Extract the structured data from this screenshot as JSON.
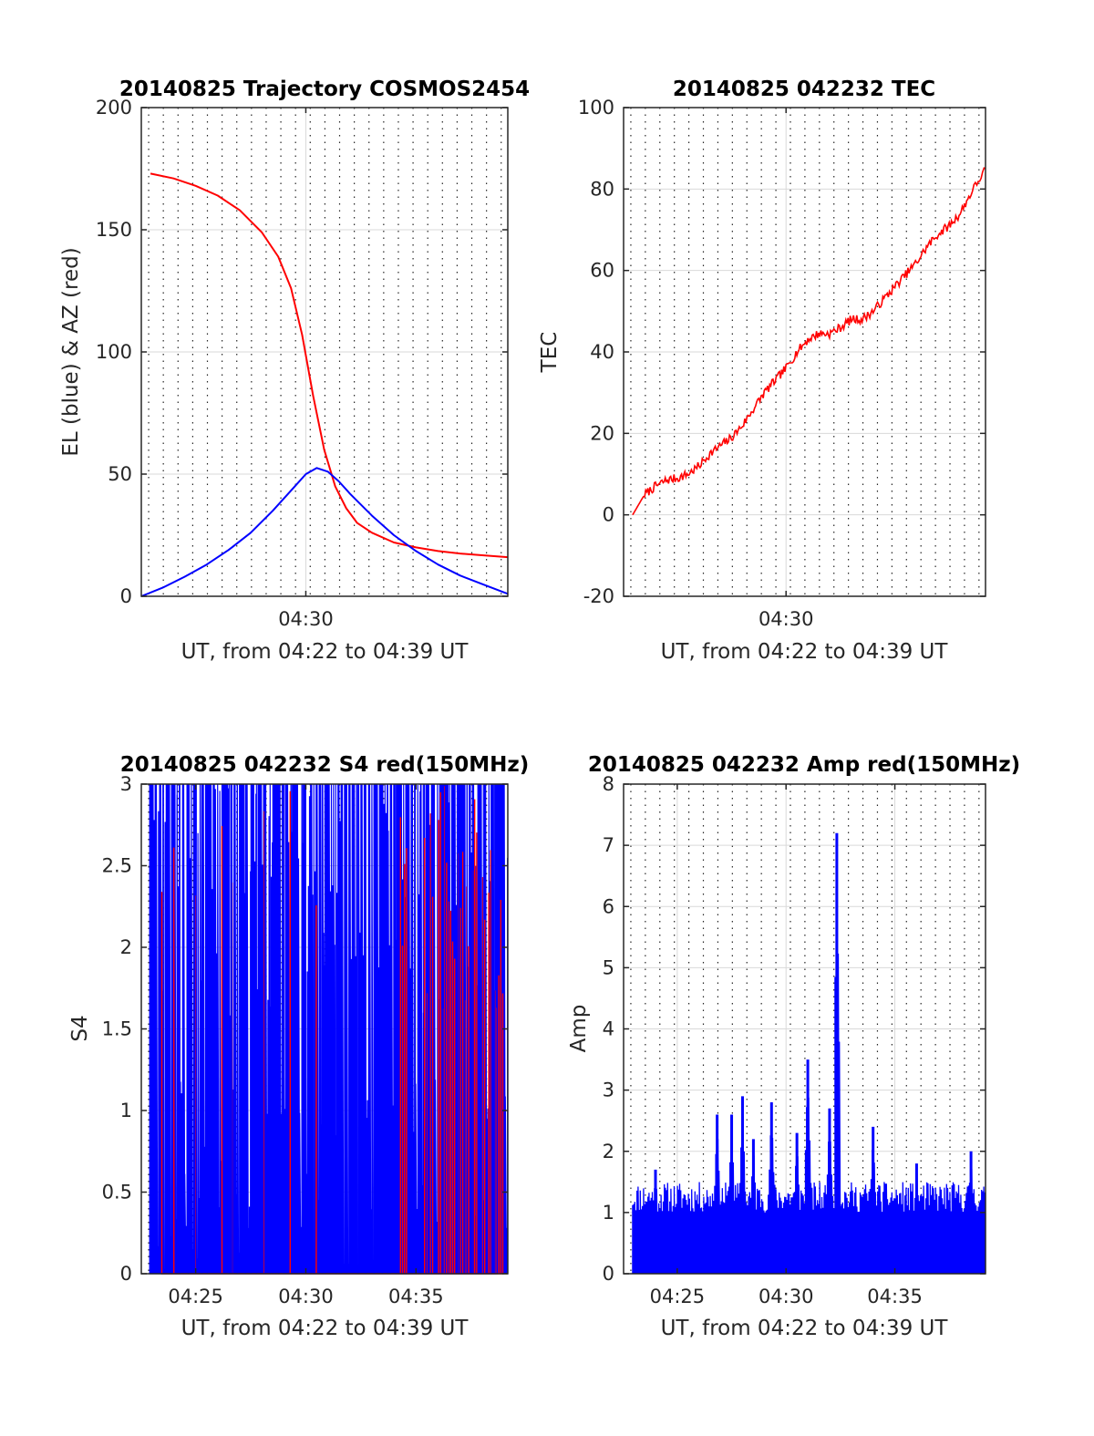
{
  "figure": {
    "background": "#ffffff"
  },
  "chart_data": [
    {
      "id": "trajectory",
      "type": "line",
      "title": "20140825 Trajectory COSMOS2454",
      "xlabel": "UT, from 04:22 to 04:39 UT",
      "ylabel": "EL (blue) & AZ (red)",
      "xlim": [
        "04:22:32",
        "04:39:10"
      ],
      "ylim": [
        0,
        200
      ],
      "yticks": [
        "0",
        "50",
        "100",
        "150",
        "200"
      ],
      "xticks": [
        {
          "t": "04:30",
          "label": "04:30"
        }
      ],
      "grid": "on (dotted vertical lines every ~40 s)",
      "series": [
        {
          "color": "#ff0000",
          "x": [
            "04:22:57",
            "04:24:00",
            "04:25:00",
            "04:26:00",
            "04:27:00",
            "04:28:00",
            "04:28:45",
            "04:29:20",
            "04:29:50",
            "04:30:20",
            "04:30:50",
            "04:31:20",
            "04:31:50",
            "04:32:20",
            "04:33:00",
            "04:34:00",
            "04:35:00",
            "04:36:00",
            "04:37:00",
            "04:38:00",
            "04:39:10"
          ],
          "values": [
            173,
            171,
            168,
            164,
            158,
            149,
            139,
            126,
            107,
            82,
            60,
            45,
            36,
            30,
            26,
            22,
            20,
            18.5,
            17.5,
            16.8,
            16
          ]
        },
        {
          "color": "#0000ff",
          "x": [
            "04:22:32",
            "04:23:30",
            "04:24:30",
            "04:25:30",
            "04:26:30",
            "04:27:30",
            "04:28:30",
            "04:29:30",
            "04:30:00",
            "04:30:30",
            "04:31:00",
            "04:31:30",
            "04:32:00",
            "04:33:00",
            "04:34:00",
            "04:35:00",
            "04:36:00",
            "04:37:00",
            "04:38:00",
            "04:39:10"
          ],
          "values": [
            0,
            3.5,
            8,
            13,
            19,
            26,
            35,
            45,
            50,
            52.5,
            51,
            47,
            42,
            33,
            25,
            18.5,
            13,
            8.5,
            5,
            1
          ]
        }
      ]
    },
    {
      "id": "tec",
      "type": "line",
      "title": "20140825 042232 TEC",
      "xlabel": "UT, from 04:22 to 04:39 UT",
      "ylabel": "TEC",
      "xlim": [
        "04:22:32",
        "04:39:10"
      ],
      "ylim": [
        -20,
        100
      ],
      "yticks": [
        "-20",
        "0",
        "20",
        "40",
        "60",
        "80",
        "100"
      ],
      "xticks": [
        {
          "t": "04:30",
          "label": "04:30"
        }
      ],
      "grid": "on",
      "series": [
        {
          "color": "#ff0000",
          "x": [
            "04:22:57",
            "04:23:30",
            "04:24:00",
            "04:24:30",
            "04:25:00",
            "04:25:30",
            "04:26:00",
            "04:26:30",
            "04:27:00",
            "04:27:30",
            "04:28:00",
            "04:28:30",
            "04:29:00",
            "04:29:30",
            "04:30:00",
            "04:30:30",
            "04:31:00",
            "04:31:30",
            "04:32:00",
            "04:32:30",
            "04:33:00",
            "04:33:30",
            "04:34:00",
            "04:34:30",
            "04:35:00",
            "04:35:30",
            "04:36:00",
            "04:36:30",
            "04:37:00",
            "04:37:30",
            "04:38:00",
            "04:38:30",
            "04:39:10"
          ],
          "values": [
            0,
            5,
            7,
            8.5,
            9,
            10,
            12,
            15,
            17,
            19,
            22,
            26,
            30,
            33,
            36,
            40,
            43,
            44.5,
            44.5,
            46,
            48,
            48,
            50,
            53,
            56,
            59,
            62,
            66,
            69,
            71,
            74,
            79,
            85
          ]
        }
      ]
    },
    {
      "id": "s4",
      "type": "line",
      "title": "20140825 042232 S4 red(150MHz)",
      "xlabel": "UT, from 04:22 to 04:39 UT",
      "ylabel": "S4",
      "xlim": [
        "04:22:32",
        "04:39:10"
      ],
      "ylim": [
        0,
        3
      ],
      "yticks": [
        "0",
        "0.5",
        "1",
        "1.5",
        "2",
        "2.5",
        "3"
      ],
      "xticks": [
        {
          "t": "04:25",
          "label": "04:25"
        },
        {
          "t": "04:30",
          "label": "04:30"
        },
        {
          "t": "04:35",
          "label": "04:35"
        }
      ],
      "grid": "on",
      "series": [
        {
          "color": "#ff0000",
          "description_of_values": "dense spikes, most saturating at 3, especially dense red bursts 04:36–04:39",
          "x": [
            "04:23:10",
            "04:26:40",
            "04:27:00",
            "04:28:50",
            "04:29:20",
            "04:31:30",
            "04:33:10",
            "04:34:40",
            "04:35:30",
            "04:36:10",
            "04:36:40",
            "04:37:10",
            "04:37:40",
            "04:38:10",
            "04:38:40"
          ],
          "values": [
            2.45,
            2.6,
            3.0,
            3.0,
            2.1,
            1.3,
            2.5,
            2.2,
            2.3,
            2.0,
            2.5,
            2.4,
            2.8,
            2.7,
            2.3
          ]
        },
        {
          "color": "#0000ff",
          "description_of_values": "dense spikes, mostly saturating at 3 with dropouts to 0",
          "x": [
            "04:23:00",
            "04:24:00",
            "04:25:00",
            "04:26:00",
            "04:27:00",
            "04:28:00",
            "04:29:00",
            "04:30:00",
            "04:31:00",
            "04:32:00",
            "04:33:00",
            "04:34:00",
            "04:35:00",
            "04:36:00",
            "04:37:00",
            "04:38:00",
            "04:39:00"
          ],
          "values": [
            3.0,
            3.0,
            3.0,
            2.9,
            3.0,
            3.0,
            2.6,
            3.0,
            1.6,
            0.7,
            3.0,
            2.6,
            3.0,
            2.8,
            3.0,
            2.3,
            2.6
          ]
        }
      ]
    },
    {
      "id": "amp",
      "type": "line",
      "title": "20140825 042232 Amp red(150MHz)",
      "xlabel": "UT, from 04:22 to 04:39 UT",
      "ylabel": "Amp",
      "xlim": [
        "04:22:32",
        "04:39:10"
      ],
      "ylim": [
        0,
        8
      ],
      "yticks": [
        "0",
        "1",
        "2",
        "3",
        "4",
        "5",
        "6",
        "7",
        "8"
      ],
      "xticks": [
        {
          "t": "04:25",
          "label": "04:25"
        },
        {
          "t": "04:30",
          "label": "04:30"
        },
        {
          "t": "04:35",
          "label": "04:35"
        }
      ],
      "grid": "on",
      "series": [
        {
          "color": "#0000ff",
          "baseline_range": [
            1.0,
            1.5
          ],
          "peaks": [
            {
              "x": "04:24:00",
              "value": 1.7
            },
            {
              "x": "04:26:50",
              "value": 2.6
            },
            {
              "x": "04:27:30",
              "value": 2.6
            },
            {
              "x": "04:28:00",
              "value": 2.9
            },
            {
              "x": "04:28:30",
              "value": 2.2
            },
            {
              "x": "04:29:20",
              "value": 2.8
            },
            {
              "x": "04:30:30",
              "value": 2.3
            },
            {
              "x": "04:31:00",
              "value": 3.5
            },
            {
              "x": "04:32:00",
              "value": 2.7
            },
            {
              "x": "04:32:20",
              "value": 7.2
            },
            {
              "x": "04:34:00",
              "value": 2.4
            },
            {
              "x": "04:36:00",
              "value": 1.8
            },
            {
              "x": "04:38:30",
              "value": 2.0
            }
          ]
        }
      ]
    }
  ]
}
